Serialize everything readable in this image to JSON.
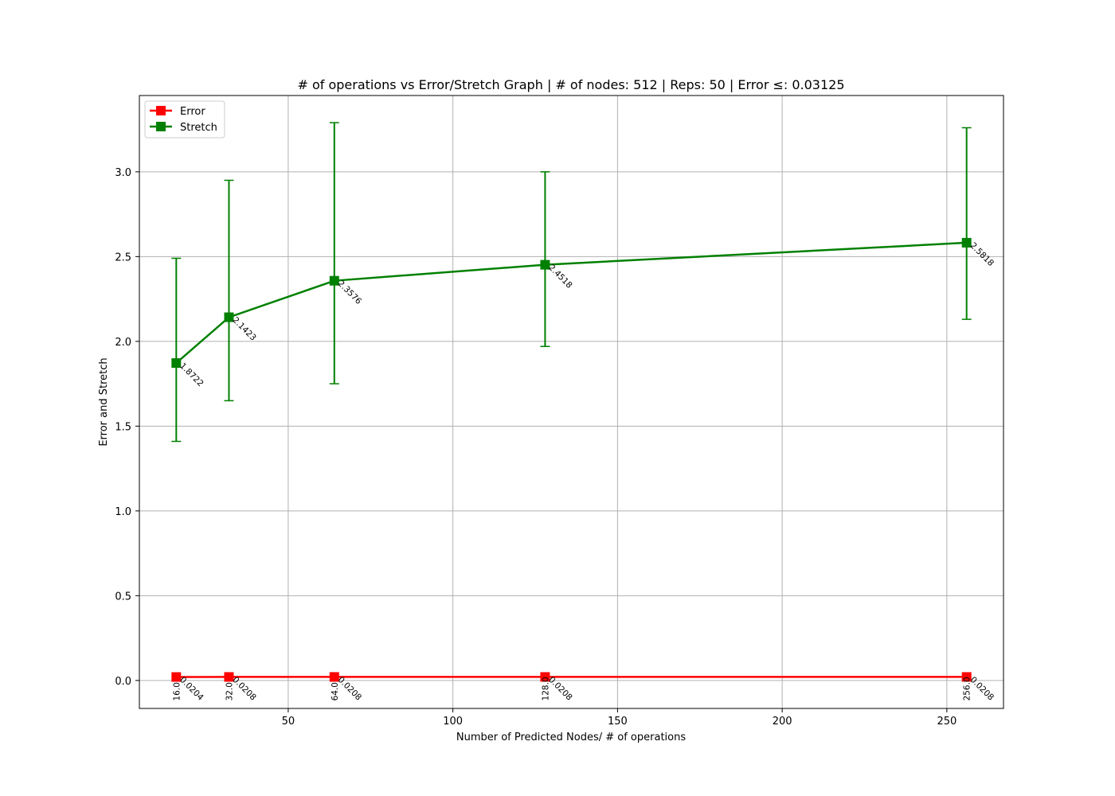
{
  "chart_data": {
    "type": "line",
    "title": "# of operations vs Error/Stretch Graph | # of nodes: 512 | Reps: 50 | Error ≤: 0.03125",
    "xlabel": "Number of Predicted Nodes/ # of operations",
    "ylabel": "Error and Stretch",
    "x": [
      16,
      32,
      64,
      128,
      256
    ],
    "xlim": [
      4.8,
      267.2
    ],
    "ylim": [
      -0.165,
      3.45
    ],
    "xticks": [
      50,
      100,
      150,
      200,
      250
    ],
    "xtick_labels": [
      "50",
      "100",
      "150",
      "200",
      "250"
    ],
    "yticks": [
      0.0,
      0.5,
      1.0,
      1.5,
      2.0,
      2.5,
      3.0
    ],
    "ytick_labels": [
      "0.0",
      "0.5",
      "1.0",
      "1.5",
      "2.0",
      "2.5",
      "3.0"
    ],
    "grid": true,
    "legend_position": "top-left",
    "series": [
      {
        "name": "Error",
        "color": "#ff0000",
        "values": [
          0.0204,
          0.0208,
          0.0208,
          0.0208,
          0.0208
        ],
        "value_labels": [
          "0.0204",
          "0.0208",
          "0.0208",
          "0.0208",
          "0.0208"
        ],
        "x_labels": [
          "16.0",
          "32.0",
          "64.0",
          "128.0",
          "256.0"
        ]
      },
      {
        "name": "Stretch",
        "color": "#008000",
        "values": [
          1.8722,
          2.1423,
          2.3576,
          2.4518,
          2.5818
        ],
        "value_labels": [
          "1.8722",
          "2.1423",
          "2.3576",
          "2.4518",
          "2.5818"
        ],
        "err_low": [
          1.41,
          1.65,
          1.75,
          1.97,
          2.13
        ],
        "err_high": [
          2.49,
          2.95,
          3.29,
          3.0,
          3.26
        ]
      }
    ]
  }
}
